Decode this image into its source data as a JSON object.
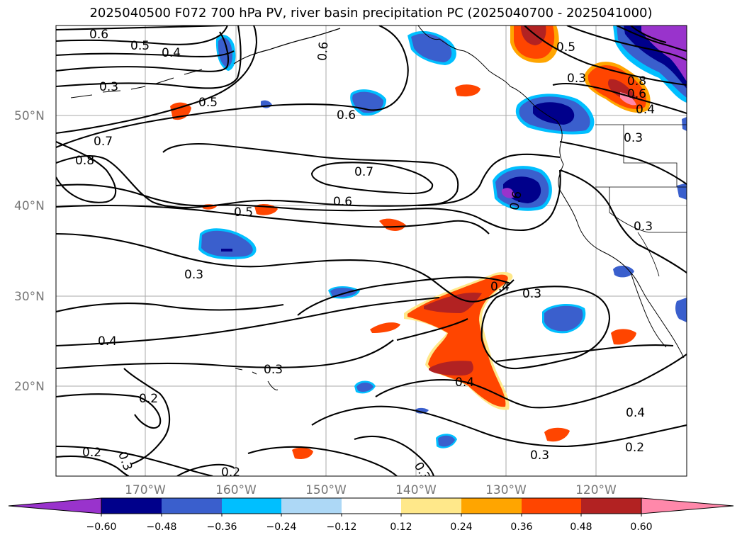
{
  "title": "2025040500 F072 700 hPa PV, river basin precipitation PC (2025040700 - 2025041000)",
  "lat_labels": [
    "50°N",
    "40°N",
    "30°N",
    "20°N"
  ],
  "lon_labels": [
    "170°W",
    "160°W",
    "150°W",
    "140°W",
    "130°W",
    "120°W"
  ],
  "contour_labels": [
    "0.6",
    "0.5",
    "0.4",
    "0.3",
    "0.5",
    "0.6",
    "0.6",
    "0.5",
    "0.3",
    "0.8",
    "0.6",
    "0.4",
    "0.3",
    "0.7",
    "0.8",
    "0.7",
    "0.6",
    "0.5",
    "0.6",
    "0.3",
    "0.3",
    "0.4",
    "0.3",
    "0.4",
    "0.3",
    "0.2",
    "0.4",
    "0.4",
    "0.2",
    "0.3",
    "0.2",
    "0.3",
    "0.3",
    "0.2"
  ],
  "colorbar": {
    "ticks": [
      "−0.60",
      "−0.48",
      "−0.36",
      "−0.24",
      "−0.12",
      "0.12",
      "0.24",
      "0.36",
      "0.48",
      "0.60"
    ],
    "colors": [
      "#9933cc",
      "#00008b",
      "#3a5fcd",
      "#00bfff",
      "#add8f6",
      "#ffffff",
      "#ffe88a",
      "#ffa500",
      "#ff4500",
      "#b22222",
      "#ff88aa"
    ]
  }
}
